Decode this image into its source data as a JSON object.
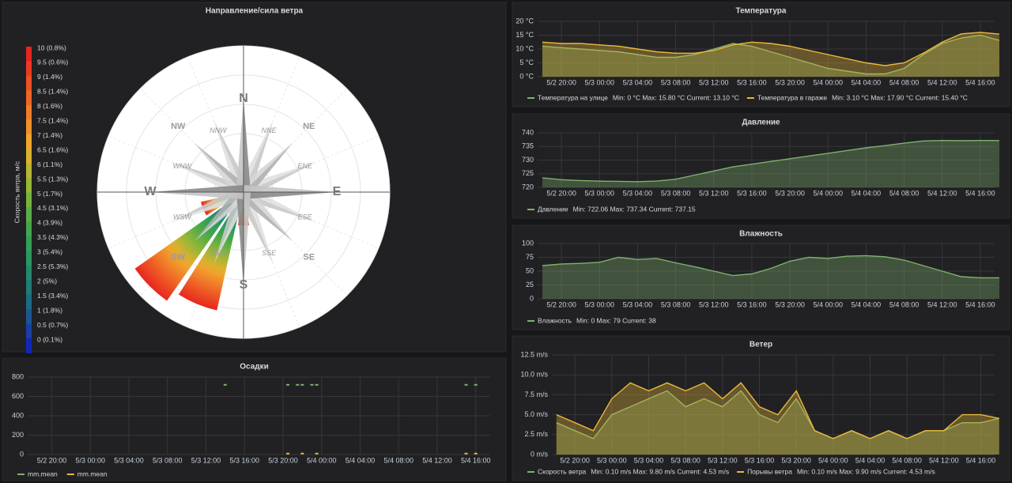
{
  "chart_data": [
    {
      "type": "polar",
      "title": "Направление/сила ветра",
      "ylabel": "Скорость ветра, м/с",
      "categories": [
        "N",
        "NNE",
        "NE",
        "ENE",
        "E",
        "ESE",
        "SE",
        "SSE",
        "S",
        "SSW",
        "SW",
        "WSW",
        "W",
        "WNW",
        "NW",
        "NNW"
      ],
      "values": [
        2,
        2,
        2,
        2,
        3,
        4,
        3,
        4,
        23,
        83,
        91,
        30,
        4,
        2,
        2,
        2
      ],
      "rlim": [
        0,
        100
      ],
      "legend": [
        {
          "label": "10 (0.8%)",
          "color": "#e8251f"
        },
        {
          "label": "9.5 (0.6%)",
          "color": "#ea3b22"
        },
        {
          "label": "9 (1.4%)",
          "color": "#ec5024"
        },
        {
          "label": "8.5 (1.4%)",
          "color": "#ef6526"
        },
        {
          "label": "8 (1.6%)",
          "color": "#f07b29"
        },
        {
          "label": "7.5 (1.4%)",
          "color": "#f0902b"
        },
        {
          "label": "7 (1.4%)",
          "color": "#eea52d"
        },
        {
          "label": "6.5 (1.6%)",
          "color": "#d9b12f"
        },
        {
          "label": "6 (1.1%)",
          "color": "#b8b433"
        },
        {
          "label": "5.5 (1.3%)",
          "color": "#97b538"
        },
        {
          "label": "5 (1.7%)",
          "color": "#76b33e"
        },
        {
          "label": "4.5 (3.1%)",
          "color": "#5aad45"
        },
        {
          "label": "4 (3.9%)",
          "color": "#44a64c"
        },
        {
          "label": "3.5 (4.3%)",
          "color": "#33a055"
        },
        {
          "label": "3 (5.4%)",
          "color": "#2a975f"
        },
        {
          "label": "2.5 (5.3%)",
          "color": "#238a6a"
        },
        {
          "label": "2 (5%)",
          "color": "#1f7c76"
        },
        {
          "label": "1.5 (3.4%)",
          "color": "#1c6b84"
        },
        {
          "label": "1 (1.8%)",
          "color": "#1a5792"
        },
        {
          "label": "0.5 (0.7%)",
          "color": "#1840a4"
        },
        {
          "label": "0 (0.1%)",
          "color": "#1426b8"
        }
      ]
    },
    {
      "type": "line",
      "title": "Температура",
      "x": [
        "5/2 18:00",
        "5/2 20:00",
        "5/2 22:00",
        "5/3 00:00",
        "5/3 02:00",
        "5/3 04:00",
        "5/3 06:00",
        "5/3 08:00",
        "5/3 10:00",
        "5/3 12:00",
        "5/3 14:00",
        "5/3 16:00",
        "5/3 18:00",
        "5/3 20:00",
        "5/3 22:00",
        "5/4 00:00",
        "5/4 02:00",
        "5/4 04:00",
        "5/4 06:00",
        "5/4 08:00",
        "5/4 10:00",
        "5/4 12:00",
        "5/4 14:00",
        "5/4 16:00",
        "5/4 18:00"
      ],
      "xlim": [
        "5/2 17:30",
        "5/4 17:30"
      ],
      "xticks": [
        "5/2 20:00",
        "5/3 00:00",
        "5/3 04:00",
        "5/3 08:00",
        "5/3 12:00",
        "5/3 16:00",
        "5/3 20:00",
        "5/4 00:00",
        "5/4 04:00",
        "5/4 08:00",
        "5/4 12:00",
        "5/4 16:00"
      ],
      "ylim": [
        0,
        20
      ],
      "yticks": [
        {
          "value": 0,
          "label": "0 °C"
        },
        {
          "value": 5,
          "label": "5 °C"
        },
        {
          "value": 10,
          "label": "10 °C"
        },
        {
          "value": 15,
          "label": "15 °C"
        },
        {
          "value": 20,
          "label": "20 °C"
        }
      ],
      "series": [
        {
          "name": "Температура на улице",
          "stats": "Min: 0 °C  Max: 15.80 °C  Current: 13.10 °C",
          "color": "#7eb26d",
          "values": [
            11,
            10.5,
            10,
            9.5,
            9,
            8,
            7,
            7,
            8,
            10,
            12,
            11,
            9,
            7,
            5,
            3,
            2,
            1,
            1,
            3,
            8,
            12,
            14,
            15,
            13.1
          ]
        },
        {
          "name": "Температура в гараже",
          "stats": "Min: 3.10 °C  Max: 17.90 °C  Current: 15.40 °C",
          "color": "#eab839",
          "values": [
            12.5,
            12,
            12,
            11.5,
            11,
            10,
            9,
            8.5,
            8.5,
            9.5,
            11.5,
            12.5,
            12,
            11,
            9.5,
            8,
            6.5,
            5,
            4,
            5,
            8.5,
            12.5,
            15.5,
            16,
            15.4
          ]
        }
      ]
    },
    {
      "type": "line",
      "title": "Давление",
      "x": [
        "5/2 18:00",
        "5/2 20:00",
        "5/2 22:00",
        "5/3 00:00",
        "5/3 02:00",
        "5/3 04:00",
        "5/3 06:00",
        "5/3 08:00",
        "5/3 10:00",
        "5/3 12:00",
        "5/3 14:00",
        "5/3 16:00",
        "5/3 18:00",
        "5/3 20:00",
        "5/3 22:00",
        "5/4 00:00",
        "5/4 02:00",
        "5/4 04:00",
        "5/4 06:00",
        "5/4 08:00",
        "5/4 10:00",
        "5/4 12:00",
        "5/4 14:00",
        "5/4 16:00",
        "5/4 18:00"
      ],
      "xlim": [
        "5/2 17:30",
        "5/4 17:30"
      ],
      "xticks": [
        "5/2 20:00",
        "5/3 00:00",
        "5/3 04:00",
        "5/3 08:00",
        "5/3 12:00",
        "5/3 16:00",
        "5/3 20:00",
        "5/4 00:00",
        "5/4 04:00",
        "5/4 08:00",
        "5/4 12:00",
        "5/4 16:00"
      ],
      "ylim": [
        720,
        740
      ],
      "yticks": [
        720,
        725,
        730,
        735,
        740
      ],
      "series": [
        {
          "name": "Давление",
          "stats": "Min: 722.06  Max: 737.34  Current: 737.15",
          "color": "#7eb26d",
          "values": [
            723.5,
            722.8,
            722.5,
            722.3,
            722.2,
            722.1,
            722.3,
            723,
            724.5,
            726,
            727.5,
            728.5,
            729.5,
            730.5,
            731.5,
            732.5,
            733.5,
            734.5,
            735.3,
            736.2,
            737,
            737.2,
            737.1,
            737.2,
            737.15
          ]
        }
      ]
    },
    {
      "type": "line",
      "title": "Влажность",
      "x": [
        "5/2 18:00",
        "5/2 20:00",
        "5/2 22:00",
        "5/3 00:00",
        "5/3 02:00",
        "5/3 04:00",
        "5/3 06:00",
        "5/3 08:00",
        "5/3 10:00",
        "5/3 12:00",
        "5/3 14:00",
        "5/3 16:00",
        "5/3 18:00",
        "5/3 20:00",
        "5/3 22:00",
        "5/4 00:00",
        "5/4 02:00",
        "5/4 04:00",
        "5/4 06:00",
        "5/4 08:00",
        "5/4 10:00",
        "5/4 12:00",
        "5/4 14:00",
        "5/4 16:00",
        "5/4 18:00"
      ],
      "xlim": [
        "5/2 17:30",
        "5/4 17:30"
      ],
      "xticks": [
        "5/2 20:00",
        "5/3 00:00",
        "5/3 04:00",
        "5/3 08:00",
        "5/3 12:00",
        "5/3 16:00",
        "5/3 20:00",
        "5/4 00:00",
        "5/4 04:00",
        "5/4 08:00",
        "5/4 12:00",
        "5/4 16:00"
      ],
      "ylim": [
        0,
        100
      ],
      "yticks": [
        0,
        25,
        50,
        75,
        100
      ],
      "series": [
        {
          "name": "Влажность",
          "stats": "Min: 0  Max: 79  Current: 38",
          "color": "#7eb26d",
          "values": [
            60,
            63,
            64,
            66,
            75,
            71,
            73,
            65,
            58,
            50,
            42,
            45,
            55,
            68,
            75,
            73,
            77,
            78,
            76,
            70,
            60,
            50,
            40,
            38,
            38
          ]
        }
      ]
    },
    {
      "type": "line",
      "title": "Ветер",
      "x": [
        "5/2 18:00",
        "5/2 20:00",
        "5/2 22:00",
        "5/3 00:00",
        "5/3 02:00",
        "5/3 04:00",
        "5/3 06:00",
        "5/3 08:00",
        "5/3 10:00",
        "5/3 12:00",
        "5/3 14:00",
        "5/3 16:00",
        "5/3 18:00",
        "5/3 20:00",
        "5/3 22:00",
        "5/4 00:00",
        "5/4 02:00",
        "5/4 04:00",
        "5/4 06:00",
        "5/4 08:00",
        "5/4 10:00",
        "5/4 12:00",
        "5/4 14:00",
        "5/4 16:00",
        "5/4 18:00"
      ],
      "xlim": [
        "5/2 17:30",
        "5/4 17:30"
      ],
      "xticks": [
        "5/2 20:00",
        "5/3 00:00",
        "5/3 04:00",
        "5/3 08:00",
        "5/3 12:00",
        "5/3 16:00",
        "5/3 20:00",
        "5/4 00:00",
        "5/4 04:00",
        "5/4 08:00",
        "5/4 12:00",
        "5/4 16:00"
      ],
      "ylim": [
        0,
        12.5
      ],
      "yticks": [
        {
          "value": 0,
          "label": "0 m/s"
        },
        {
          "value": 2.5,
          "label": "2.5 m/s"
        },
        {
          "value": 5,
          "label": "5.0 m/s"
        },
        {
          "value": 7.5,
          "label": "7.5 m/s"
        },
        {
          "value": 10,
          "label": "10.0 m/s"
        },
        {
          "value": 12.5,
          "label": "12.5 m/s"
        }
      ],
      "series": [
        {
          "name": "Скорость ветра",
          "stats": "Min: 0.10 m/s  Max: 9.80 m/s  Current: 4.53 m/s",
          "color": "#7eb26d",
          "values": [
            4,
            3,
            2,
            5,
            6,
            7,
            8,
            6,
            7,
            6,
            8,
            5,
            4,
            7,
            3,
            2,
            3,
            2,
            3,
            2,
            3,
            3,
            4,
            4,
            4.53
          ]
        },
        {
          "name": "Порывы ветра",
          "stats": "Min: 0.10 m/s  Max: 9.90 m/s  Current: 4.53 m/s",
          "color": "#eab839",
          "values": [
            5,
            4,
            3,
            7,
            9,
            8,
            9,
            8,
            9,
            7,
            9,
            6,
            5,
            8,
            3,
            2,
            3,
            2,
            3,
            2,
            3,
            3,
            5,
            5,
            4.53
          ]
        }
      ]
    },
    {
      "type": "scatter",
      "title": "Осадки",
      "xlim": [
        "5/2 17:30",
        "5/4 17:30"
      ],
      "xticks": [
        "5/2 20:00",
        "5/3 00:00",
        "5/3 04:00",
        "5/3 08:00",
        "5/3 12:00",
        "5/3 16:00",
        "5/3 20:00",
        "5/4 00:00",
        "5/4 04:00",
        "5/4 08:00",
        "5/4 12:00",
        "5/4 16:00"
      ],
      "ylim": [
        0,
        800
      ],
      "yticks": [
        0,
        200,
        400,
        600,
        800
      ],
      "series": [
        {
          "name": "mm.mean",
          "color": "#7eb26d",
          "x": [
            "5/3 14:00",
            "5/3 20:30",
            "5/3 21:30",
            "5/3 22:00",
            "5/3 23:00",
            "5/3 23:30",
            "5/4 15:00",
            "5/4 16:00"
          ],
          "values": [
            720,
            720,
            720,
            720,
            720,
            720,
            720,
            720
          ]
        },
        {
          "name": "mm.mean",
          "color": "#eab839",
          "x": [
            "5/3 20:30",
            "5/3 22:00",
            "5/3 23:30",
            "5/4 15:00",
            "5/4 16:00"
          ],
          "values": [
            10,
            10,
            10,
            10,
            10
          ]
        }
      ]
    }
  ]
}
